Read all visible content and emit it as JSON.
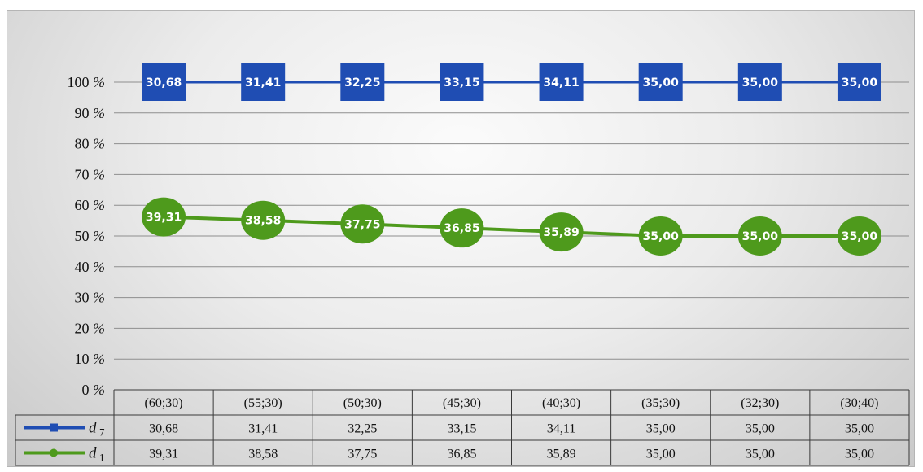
{
  "chart_data": {
    "type": "line",
    "categories": [
      "(60;30)",
      "(55;30)",
      "(50;30)",
      "(45;30)",
      "(40;30)",
      "(35;30)",
      "(32;30)",
      "(30;40)"
    ],
    "y_ticks": [
      "0 %",
      "10 %",
      "20 %",
      "30 %",
      "40 %",
      "50 %",
      "60 %",
      "70 %",
      "80 %",
      "90 %",
      "100 %"
    ],
    "ylim": [
      0,
      100
    ],
    "grid": true,
    "legend": "data-table",
    "series": [
      {
        "name": "d",
        "subscript": "7",
        "color": "#1f4db3",
        "marker": "square",
        "y_percent": [
          100,
          100,
          100,
          100,
          100,
          100,
          100,
          100
        ],
        "labels": [
          "30,68",
          "31,41",
          "32,25",
          "33,15",
          "34,11",
          "35,00",
          "35,00",
          "35,00"
        ]
      },
      {
        "name": "d",
        "subscript": "1",
        "color": "#4e9a1c",
        "marker": "circle",
        "y_percent": [
          56.2,
          55.1,
          53.9,
          52.6,
          51.3,
          50,
          50,
          50
        ],
        "labels": [
          "39,31",
          "38,58",
          "37,75",
          "36,85",
          "35,89",
          "35,00",
          "35,00",
          "35,00"
        ]
      }
    ]
  }
}
